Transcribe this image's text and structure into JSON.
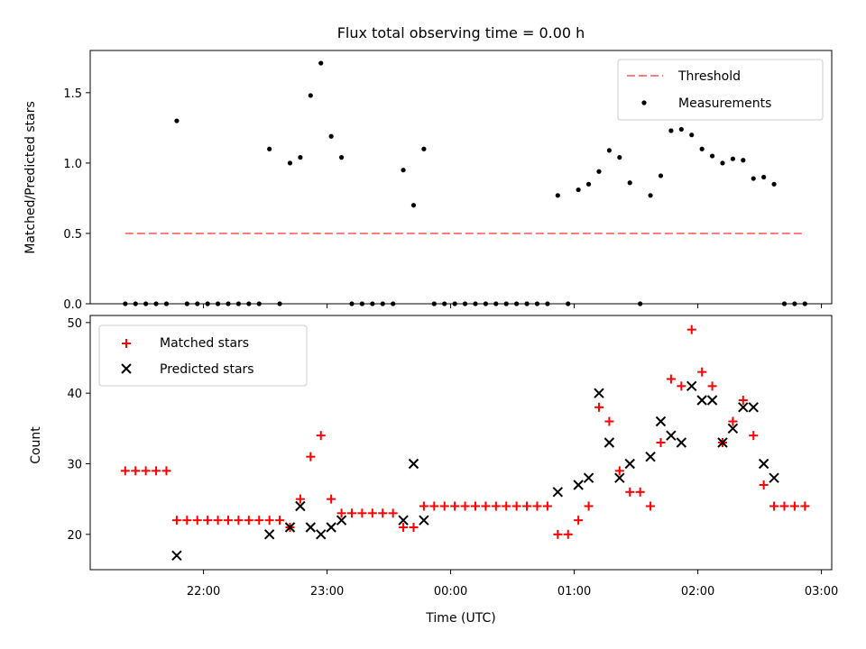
{
  "chart_data": [
    {
      "type": "scatter",
      "title": "Flux total observing time = 0.00 h",
      "xlabel": "",
      "ylabel": "Matched/Predicted stars",
      "xlim": [
        "21:05",
        "03:05"
      ],
      "ylim": [
        0,
        1.8
      ],
      "yticks": [
        "0.0",
        "0.5",
        "1.0",
        "1.5"
      ],
      "legend_position": "top-right",
      "threshold": {
        "name": "Threshold",
        "value": 0.5,
        "x_start": "21:22",
        "x_end": "02:52",
        "color": "#ff7f7f",
        "style": "dashed"
      },
      "measurements": {
        "name": "Measurements",
        "color": "#000000",
        "points": [
          [
            "21:22",
            0
          ],
          [
            "21:27",
            0
          ],
          [
            "21:32",
            0
          ],
          [
            "21:37",
            0
          ],
          [
            "21:42",
            0
          ],
          [
            "21:47",
            1.3
          ],
          [
            "21:52",
            0
          ],
          [
            "21:57",
            0
          ],
          [
            "22:02",
            0
          ],
          [
            "22:07",
            0
          ],
          [
            "22:12",
            0
          ],
          [
            "22:17",
            0
          ],
          [
            "22:22",
            0
          ],
          [
            "22:27",
            0
          ],
          [
            "22:32",
            1.1
          ],
          [
            "22:37",
            0
          ],
          [
            "22:42",
            1.0
          ],
          [
            "22:47",
            1.04
          ],
          [
            "22:52",
            1.48
          ],
          [
            "22:57",
            1.71
          ],
          [
            "23:02",
            1.19
          ],
          [
            "23:07",
            1.04
          ],
          [
            "23:12",
            0
          ],
          [
            "23:17",
            0
          ],
          [
            "23:22",
            0
          ],
          [
            "23:27",
            0
          ],
          [
            "23:32",
            0
          ],
          [
            "23:37",
            0.95
          ],
          [
            "23:42",
            0.7
          ],
          [
            "23:47",
            1.1
          ],
          [
            "23:52",
            0
          ],
          [
            "23:57",
            0
          ],
          [
            "00:02",
            0
          ],
          [
            "00:07",
            0
          ],
          [
            "00:12",
            0
          ],
          [
            "00:17",
            0
          ],
          [
            "00:22",
            0
          ],
          [
            "00:27",
            0
          ],
          [
            "00:32",
            0
          ],
          [
            "00:37",
            0
          ],
          [
            "00:42",
            0
          ],
          [
            "00:47",
            0
          ],
          [
            "00:52",
            0.77
          ],
          [
            "00:57",
            0
          ],
          [
            "01:02",
            0.81
          ],
          [
            "01:07",
            0.85
          ],
          [
            "01:12",
            0.94
          ],
          [
            "01:17",
            1.09
          ],
          [
            "01:22",
            1.04
          ],
          [
            "01:27",
            0.86
          ],
          [
            "01:32",
            0
          ],
          [
            "01:37",
            0.77
          ],
          [
            "01:42",
            0.91
          ],
          [
            "01:47",
            1.23
          ],
          [
            "01:52",
            1.24
          ],
          [
            "01:57",
            1.2
          ],
          [
            "02:02",
            1.1
          ],
          [
            "02:07",
            1.05
          ],
          [
            "02:12",
            1.0
          ],
          [
            "02:17",
            1.03
          ],
          [
            "02:22",
            1.02
          ],
          [
            "02:27",
            0.89
          ],
          [
            "02:32",
            0.9
          ],
          [
            "02:37",
            0.85
          ],
          [
            "02:42",
            0
          ],
          [
            "02:47",
            0
          ],
          [
            "02:52",
            0
          ]
        ]
      }
    },
    {
      "type": "scatter",
      "title": "",
      "xlabel": "Time (UTC)",
      "ylabel": "Count",
      "xlim": [
        "21:05",
        "03:05"
      ],
      "ylim": [
        15,
        51
      ],
      "yticks": [
        "20",
        "30",
        "40",
        "50"
      ],
      "xticks": [
        "22:00",
        "23:00",
        "00:00",
        "01:00",
        "02:00",
        "03:00"
      ],
      "legend_position": "top-left",
      "series": [
        {
          "name": "Matched stars",
          "marker": "plus",
          "color": "#ff0000",
          "points": [
            [
              "21:22",
              29
            ],
            [
              "21:27",
              29
            ],
            [
              "21:32",
              29
            ],
            [
              "21:37",
              29
            ],
            [
              "21:42",
              29
            ],
            [
              "21:47",
              22
            ],
            [
              "21:52",
              22
            ],
            [
              "21:57",
              22
            ],
            [
              "22:02",
              22
            ],
            [
              "22:07",
              22
            ],
            [
              "22:12",
              22
            ],
            [
              "22:17",
              22
            ],
            [
              "22:22",
              22
            ],
            [
              "22:27",
              22
            ],
            [
              "22:32",
              22
            ],
            [
              "22:37",
              22
            ],
            [
              "22:42",
              21
            ],
            [
              "22:47",
              25
            ],
            [
              "22:52",
              31
            ],
            [
              "22:57",
              34
            ],
            [
              "23:02",
              25
            ],
            [
              "23:07",
              23
            ],
            [
              "23:12",
              23
            ],
            [
              "23:17",
              23
            ],
            [
              "23:22",
              23
            ],
            [
              "23:27",
              23
            ],
            [
              "23:32",
              23
            ],
            [
              "23:37",
              21
            ],
            [
              "23:42",
              21
            ],
            [
              "23:47",
              24
            ],
            [
              "23:52",
              24
            ],
            [
              "23:57",
              24
            ],
            [
              "00:02",
              24
            ],
            [
              "00:07",
              24
            ],
            [
              "00:12",
              24
            ],
            [
              "00:17",
              24
            ],
            [
              "00:22",
              24
            ],
            [
              "00:27",
              24
            ],
            [
              "00:32",
              24
            ],
            [
              "00:37",
              24
            ],
            [
              "00:42",
              24
            ],
            [
              "00:47",
              24
            ],
            [
              "00:52",
              20
            ],
            [
              "00:57",
              20
            ],
            [
              "01:02",
              22
            ],
            [
              "01:07",
              24
            ],
            [
              "01:12",
              38
            ],
            [
              "01:17",
              36
            ],
            [
              "01:22",
              29
            ],
            [
              "01:27",
              26
            ],
            [
              "01:32",
              26
            ],
            [
              "01:37",
              24
            ],
            [
              "01:42",
              33
            ],
            [
              "01:47",
              42
            ],
            [
              "01:52",
              41
            ],
            [
              "01:57",
              49
            ],
            [
              "02:02",
              43
            ],
            [
              "02:07",
              41
            ],
            [
              "02:12",
              33
            ],
            [
              "02:17",
              36
            ],
            [
              "02:22",
              39
            ],
            [
              "02:27",
              34
            ],
            [
              "02:32",
              27
            ],
            [
              "02:37",
              24
            ],
            [
              "02:42",
              24
            ],
            [
              "02:47",
              24
            ],
            [
              "02:52",
              24
            ]
          ]
        },
        {
          "name": "Predicted stars",
          "marker": "x",
          "color": "#000000",
          "points": [
            [
              "21:47",
              17
            ],
            [
              "22:32",
              20
            ],
            [
              "22:42",
              21
            ],
            [
              "22:47",
              24
            ],
            [
              "22:52",
              21
            ],
            [
              "22:57",
              20
            ],
            [
              "23:02",
              21
            ],
            [
              "23:07",
              22
            ],
            [
              "23:37",
              22
            ],
            [
              "23:42",
              30
            ],
            [
              "23:47",
              22
            ],
            [
              "00:52",
              26
            ],
            [
              "01:02",
              27
            ],
            [
              "01:07",
              28
            ],
            [
              "01:12",
              40
            ],
            [
              "01:17",
              33
            ],
            [
              "01:22",
              28
            ],
            [
              "01:27",
              30
            ],
            [
              "01:37",
              31
            ],
            [
              "01:42",
              36
            ],
            [
              "01:47",
              34
            ],
            [
              "01:52",
              33
            ],
            [
              "01:57",
              41
            ],
            [
              "02:02",
              39
            ],
            [
              "02:07",
              39
            ],
            [
              "02:12",
              33
            ],
            [
              "02:17",
              35
            ],
            [
              "02:22",
              38
            ],
            [
              "02:27",
              38
            ],
            [
              "02:32",
              30
            ],
            [
              "02:37",
              28
            ]
          ]
        }
      ]
    }
  ]
}
